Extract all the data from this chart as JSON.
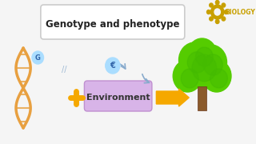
{
  "bg_color": "#f5f5f5",
  "title_text": "Genotype and phenotype",
  "title_box_color": "#ffffff",
  "title_box_edge": "#cccccc",
  "env_text": "Environment",
  "env_box_color": "#d8b4e8",
  "env_box_edge": "#c090d0",
  "arrow_color": "#f5a800",
  "plus_color": "#f5a800",
  "biology_text": "BIOLOGY",
  "biology_gear_color": "#c8a000",
  "dna_colors": [
    "#e8a040",
    "#e8a040"
  ],
  "circle_g_color": "#aaddff",
  "circle_e_color": "#aaddff",
  "tree_green": "#55cc00",
  "tree_trunk": "#8B5a2B"
}
